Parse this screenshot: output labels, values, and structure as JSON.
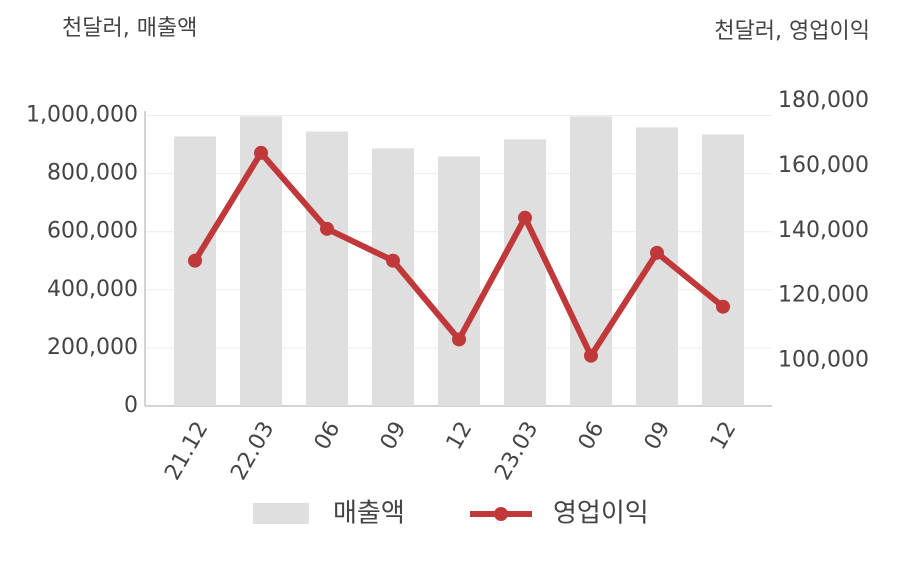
{
  "chart_data": {
    "type": "bar-line",
    "y_axis_label": "천달러, 매출액",
    "y2_axis_label": "천달러, 영업이익",
    "categories": [
      "21.12",
      "22.03",
      "06",
      "09",
      "12",
      "23.03",
      "06",
      "09",
      "12"
    ],
    "series": [
      {
        "name": "매출액",
        "type": "bar",
        "color": "#dfdfdf",
        "values": [
          928000,
          997000,
          945000,
          887000,
          859000,
          918000,
          997000,
          959000,
          935000
        ]
      },
      {
        "name": "영업이익",
        "type": "line",
        "axis": "y2",
        "color": "#c0383a",
        "values": [
          130800,
          164000,
          140600,
          130800,
          106500,
          144000,
          101500,
          133200,
          116600
        ]
      }
    ],
    "ylim": [
      0,
      1050000
    ],
    "yticks": [
      0,
      {
        "value": 200000,
        "label": "200,000"
      },
      {
        "value": 400000,
        "label": "400,000"
      },
      {
        "value": 600000,
        "label": "600,000"
      },
      {
        "value": 800000,
        "label": "800,000"
      },
      {
        "value": 1000000,
        "label": "1,000,000"
      }
    ],
    "y2lim": [
      86000,
      180000
    ],
    "y2ticks": [
      {
        "value": 100000,
        "label": "100,000"
      },
      {
        "value": 120000,
        "label": "120,000"
      },
      {
        "value": 140000,
        "label": "140,000"
      },
      {
        "value": 160000,
        "label": "160,000"
      },
      {
        "value": 180000,
        "label": "180,000"
      }
    ],
    "grid": true
  }
}
